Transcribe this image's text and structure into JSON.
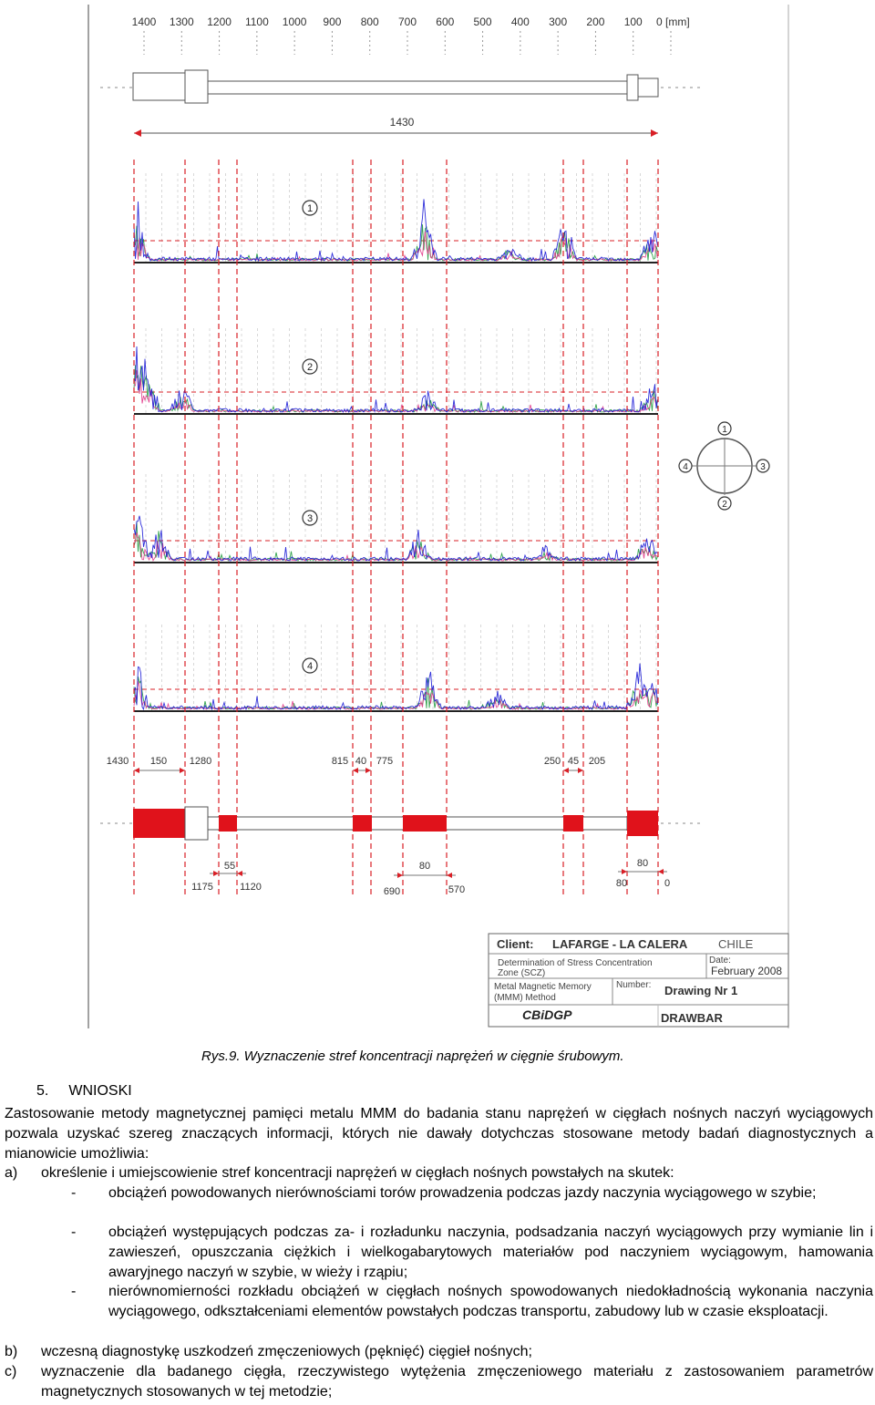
{
  "figure": {
    "top_scale": {
      "ticks": [
        "1400",
        "1300",
        "1200",
        "1100",
        "1000",
        "900",
        "800",
        "700",
        "600",
        "500",
        "400",
        "300",
        "200",
        "100",
        "0 [mm]"
      ]
    },
    "total_length_label": "1430",
    "graph_markers": [
      "1",
      "2",
      "3",
      "4"
    ],
    "cross_section_markers": [
      "1",
      "2",
      "3",
      "4"
    ],
    "upper_dimensions": [
      "1430",
      "150",
      "1280",
      "815",
      "40",
      "775",
      "250",
      "45",
      "205"
    ],
    "lower_dimensions": {
      "top_row": [
        "55",
        "80",
        "80"
      ],
      "bottom_row": [
        "1175",
        "1120",
        "690",
        "570",
        "80",
        "0"
      ]
    },
    "colors": {
      "red_zone": "#e0121b",
      "marker_line": "#d91f26",
      "series_blue": "#1a1ad6",
      "series_green": "#1e9a3c",
      "series_pink": "#e23a8a"
    },
    "title_block": {
      "client_label": "Client:",
      "client_value": "LAFARGE - LA CALERA",
      "country": "CHILE",
      "method_line1": "Determination of Stress Concentration",
      "method_line2": "Zone (SCZ)",
      "date_label": "Date:",
      "date_value": "February 2008",
      "memory_line1": "Metal Magnetic Memory",
      "memory_line2": "(MMM) Method",
      "number_label": "Number:",
      "drawing_number": "Drawing Nr 1",
      "logo": "CBiDGP",
      "part_name": "DRAWBAR"
    }
  },
  "caption": "Rys.9. Wyznaczenie stref koncentracji naprężeń w cięgnie śrubowym.",
  "section": {
    "number": "5.",
    "title": "WNIOSKI",
    "paragraph": "Zastosowanie metody magnetycznej pamięci metalu MMM do badania stanu naprężeń w cięgłach nośnych naczyń wyciągowych pozwala uzyskać szereg znaczących informacji, których nie dawały dotychczas stosowane metody badań diagnostycznych a mianowicie umożliwia:",
    "items": [
      {
        "label": "a)",
        "text": "określenie i umiejscowienie stref koncentracji naprężeń w cięgłach nośnych powstałych na skutek:",
        "subitems": [
          {
            "dash": "-",
            "text": "obciążeń powodowanych nierównościami torów prowadzenia podczas jazdy naczynia wyciągowego w szybie;"
          },
          {
            "dash": "-",
            "text": "obciążeń występujących podczas za- i rozładunku naczynia, podsadzania naczyń wyciągowych przy wymianie lin i zawieszeń, opuszczania ciężkich i wielkogabarytowych materiałów pod naczyniem wyciągowym, hamowania awaryjnego naczyń w szybie, w wieży i rząpiu;"
          },
          {
            "dash": "-",
            "text": "nierównomierności rozkładu obciążeń w cięgłach nośnych spowodowanych niedokładnością wykonania naczynia wyciągowego, odkształceniami elementów powstałych podczas transportu, zabudowy lub w czasie eksploatacji."
          }
        ]
      },
      {
        "label": "b)",
        "text": "wczesną diagnostykę uszkodzeń zmęczeniowych (pęknięć) cięgieł nośnych;"
      },
      {
        "label": "c)",
        "text": "wyznaczenie dla badanego cięgła, rzeczywistego wytężenia zmęczeniowego materiału z zastosowaniem parametrów magnetycznych stosowanych w tej metodzie;"
      }
    ]
  }
}
